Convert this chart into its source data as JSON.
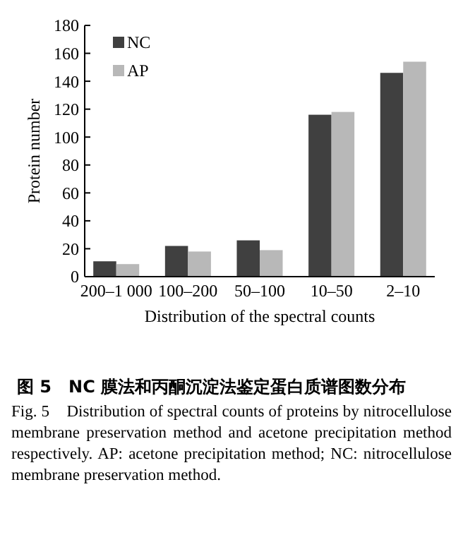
{
  "chart_data": {
    "type": "bar",
    "title": "图 5　NC 膜法和丙酮沉淀法鉴定蛋白质谱图数分布",
    "xlabel": "Distribution of the spectral counts",
    "ylabel": "Protein number",
    "categories": [
      "200–1 000",
      "100–200",
      "50–100",
      "10–50",
      "2–10"
    ],
    "series": [
      {
        "name": "NC",
        "color": "#404040",
        "values": [
          11,
          22,
          26,
          116,
          146
        ]
      },
      {
        "name": "AP",
        "color": "#b8b8b8",
        "values": [
          9,
          18,
          19,
          118,
          154
        ]
      }
    ],
    "ylim": [
      0,
      180
    ],
    "yticks": [
      0,
      20,
      40,
      60,
      80,
      100,
      120,
      140,
      160,
      180
    ],
    "grid": false,
    "legend": "top left",
    "annotations": [
      "Fig. 5　Distribution of spectral counts of proteins by nitrocellulose membrane preservation method and acetone precipitation method respectively. AP: acetone precipitation method; NC: nitrocellulose membrane preservation method."
    ]
  }
}
